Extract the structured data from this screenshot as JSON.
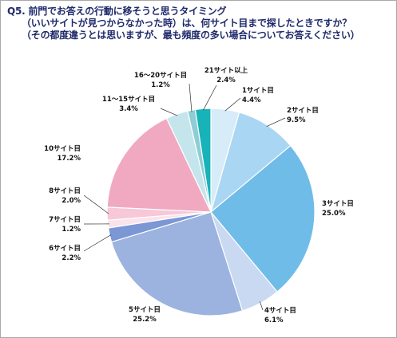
{
  "title": {
    "line1": "Q5. 前門でお答えの行動に移そうと思うタイミング",
    "line2": "（いいサイトが見つからなかった時）は、何サイト目まで探したときですか？",
    "line3": "（その都度違うとは思いますが、最も頻度の多い場合についてお答えください）"
  },
  "chart_data": {
    "type": "pie",
    "title": "Q5. 前門でお答えの行動に移そうと思うタイミング（いいサイトが見つからなかった時）は、何サイト目まで探したときですか？（その都度違うとは思いますが、最も頻度の多い場合についてお答えください）",
    "start": "12 o'clock, clockwise",
    "slices": [
      {
        "label": "1サイト目",
        "value": 4.4,
        "display": "4.4%",
        "color": "#d6ecf8"
      },
      {
        "label": "2サイト目",
        "value": 9.5,
        "display": "9.5%",
        "color": "#a9d6f2"
      },
      {
        "label": "3サイト目",
        "value": 25.0,
        "display": "25.0%",
        "color": "#6fbce8"
      },
      {
        "label": "4サイト目",
        "value": 6.1,
        "display": "6.1%",
        "color": "#c9d9f2"
      },
      {
        "label": "5サイト目",
        "value": 25.2,
        "display": "25.2%",
        "color": "#9bb3de"
      },
      {
        "label": "6サイト目",
        "value": 2.2,
        "display": "2.2%",
        "color": "#7b97d4"
      },
      {
        "label": "7サイト目",
        "value": 1.2,
        "display": "1.2%",
        "color": "#fbe3ec"
      },
      {
        "label": "8サイト目",
        "value": 2.0,
        "display": "2.0%",
        "color": "#f7c8d7"
      },
      {
        "label": "10サイト目",
        "value": 17.2,
        "display": "17.2%",
        "color": "#f1a9c2"
      },
      {
        "label": "11～15サイト目",
        "value": 3.4,
        "display": "3.4%",
        "color": "#c5e5ec"
      },
      {
        "label": "16～20サイト目",
        "value": 1.2,
        "display": "1.2%",
        "color": "#8fcdd6"
      },
      {
        "label": "21サイト以上",
        "value": 2.4,
        "display": "2.4%",
        "color": "#17b3b9"
      }
    ]
  }
}
